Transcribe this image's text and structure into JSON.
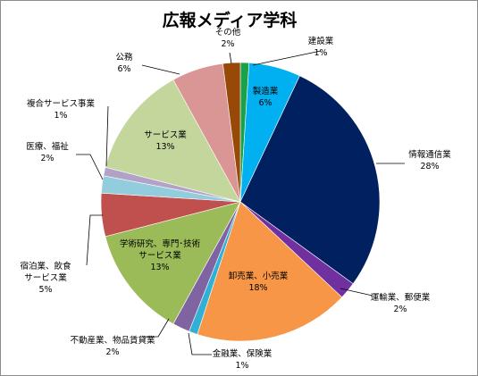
{
  "chart_data": {
    "type": "pie",
    "title": "広報メディア学科",
    "slices": [
      {
        "name": "建設業",
        "value": 1,
        "label": "1%",
        "color": "#1aa24a"
      },
      {
        "name": "製造業",
        "value": 6,
        "label": "6%",
        "color": "#00b0f0"
      },
      {
        "name": "情報通信業",
        "value": 28,
        "label": "28%",
        "color": "#002060"
      },
      {
        "name": "運輸業、郵便業",
        "value": 2,
        "label": "2%",
        "color": "#7030a0"
      },
      {
        "name": "卸売業、小売業",
        "value": 18,
        "label": "18%",
        "color": "#f79646"
      },
      {
        "name": "金融業、保険業",
        "value": 1,
        "label": "1%",
        "color": "#31b0d5"
      },
      {
        "name": "不動産業、物品賃貸業",
        "value": 2,
        "label": "2%",
        "color": "#8064a2"
      },
      {
        "name": "学術研究、専門･技術サービス業",
        "value": 13,
        "label": "13%",
        "color": "#9bbb59"
      },
      {
        "name": "宿泊業、飲食サービス業",
        "value": 5,
        "label": "5%",
        "color": "#c0504d"
      },
      {
        "name": "医療、福祉",
        "value": 2,
        "label": "2%",
        "color": "#93cddd"
      },
      {
        "name": "複合サービス事業",
        "value": 1,
        "label": "1%",
        "color": "#b3a2c7"
      },
      {
        "name": "サービス業",
        "value": 13,
        "label": "13%",
        "color": "#c3d69b"
      },
      {
        "name": "公務",
        "value": 6,
        "label": "6%",
        "color": "#d99694"
      },
      {
        "name": "その他",
        "value": 2,
        "label": "2%",
        "color": "#984807"
      }
    ]
  }
}
